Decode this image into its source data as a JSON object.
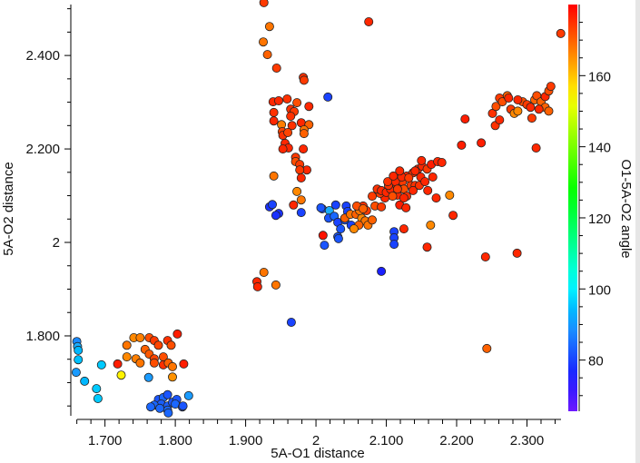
{
  "chart_data": {
    "type": "scatter",
    "title": "",
    "xlabel": "5A-O1 distance",
    "ylabel": "5A-O2 distance",
    "colorbar_label": "O1-5A-O2 angle",
    "xlim": [
      1.654,
      2.351
    ],
    "ylim": [
      1.629,
      2.509
    ],
    "clim": [
      65.6,
      180
    ],
    "x_ticks": [
      {
        "value": 1.7,
        "label": "1.700"
      },
      {
        "value": 1.8,
        "label": "1.800"
      },
      {
        "value": 1.9,
        "label": "1.900"
      },
      {
        "value": 2.0,
        "label": "2"
      },
      {
        "value": 2.1,
        "label": "2.100"
      },
      {
        "value": 2.2,
        "label": "2.200"
      },
      {
        "value": 2.3,
        "label": "2.300"
      }
    ],
    "y_ticks": [
      {
        "value": 1.8,
        "label": "1.800"
      },
      {
        "value": 2.0,
        "label": "2"
      },
      {
        "value": 2.2,
        "label": "2.200"
      },
      {
        "value": 2.4,
        "label": "2.400"
      }
    ],
    "c_ticks": [
      {
        "value": 80,
        "label": "80"
      },
      {
        "value": 100,
        "label": "100"
      },
      {
        "value": 120,
        "label": "120"
      },
      {
        "value": 140,
        "label": "140"
      },
      {
        "value": 160,
        "label": "160"
      }
    ],
    "colormap": "rainbow",
    "points": [
      [
        1.66,
        1.788,
        88
      ],
      [
        1.661,
        1.777,
        92
      ],
      [
        1.662,
        1.769,
        94
      ],
      [
        1.662,
        1.749,
        95
      ],
      [
        1.659,
        1.722,
        90
      ],
      [
        1.671,
        1.703,
        94
      ],
      [
        1.688,
        1.687,
        96
      ],
      [
        1.69,
        1.666,
        96
      ],
      [
        1.695,
        1.738,
        96
      ],
      [
        1.741,
        1.796,
        166
      ],
      [
        1.75,
        1.796,
        167
      ],
      [
        1.731,
        1.78,
        168
      ],
      [
        1.731,
        1.755,
        166
      ],
      [
        1.763,
        1.796,
        172
      ],
      [
        1.77,
        1.79,
        174
      ],
      [
        1.776,
        1.78,
        173
      ],
      [
        1.789,
        1.79,
        175
      ],
      [
        1.794,
        1.78,
        172
      ],
      [
        1.757,
        1.771,
        170
      ],
      [
        1.763,
        1.761,
        171
      ],
      [
        1.77,
        1.751,
        173
      ],
      [
        1.783,
        1.755,
        172
      ],
      [
        1.744,
        1.751,
        167
      ],
      [
        1.75,
        1.742,
        168
      ],
      [
        1.783,
        1.738,
        175
      ],
      [
        1.79,
        1.742,
        170
      ],
      [
        1.796,
        1.734,
        168
      ],
      [
        1.77,
        1.742,
        172
      ],
      [
        1.803,
        1.804,
        177
      ],
      [
        1.812,
        1.74,
        177
      ],
      [
        1.718,
        1.74,
        177
      ],
      [
        1.723,
        1.716,
        155
      ],
      [
        1.796,
        1.712,
        165
      ],
      [
        1.762,
        1.711,
        90
      ],
      [
        1.776,
        1.664,
        82
      ],
      [
        1.783,
        1.668,
        84
      ],
      [
        1.78,
        1.654,
        83
      ],
      [
        1.789,
        1.674,
        82
      ],
      [
        1.77,
        1.652,
        84
      ],
      [
        1.789,
        1.65,
        83
      ],
      [
        1.796,
        1.658,
        82
      ],
      [
        1.789,
        1.641,
        84
      ],
      [
        1.802,
        1.664,
        82
      ],
      [
        1.8,
        1.654,
        84
      ],
      [
        1.81,
        1.648,
        82
      ],
      [
        1.811,
        1.65,
        82
      ],
      [
        1.819,
        1.672,
        90
      ],
      [
        1.79,
        1.635,
        84
      ],
      [
        1.778,
        1.645,
        84
      ],
      [
        1.765,
        1.648,
        84
      ],
      [
        1.926,
        2.513,
        174
      ],
      [
        1.934,
        2.462,
        168
      ],
      [
        1.925,
        2.429,
        168
      ],
      [
        1.931,
        2.402,
        170
      ],
      [
        1.944,
        2.373,
        174
      ],
      [
        1.982,
        2.353,
        175
      ],
      [
        1.983,
        2.347,
        174
      ],
      [
        2.017,
        2.311,
        80
      ],
      [
        1.939,
        2.301,
        176
      ],
      [
        1.947,
        2.303,
        176
      ],
      [
        1.959,
        2.307,
        175
      ],
      [
        1.973,
        2.299,
        172
      ],
      [
        1.99,
        2.291,
        176
      ],
      [
        1.94,
        2.278,
        175
      ],
      [
        1.94,
        2.26,
        176
      ],
      [
        1.964,
        2.285,
        175
      ],
      [
        1.969,
        2.28,
        174
      ],
      [
        1.964,
        2.27,
        175
      ],
      [
        1.951,
        2.252,
        167
      ],
      [
        1.952,
        2.237,
        173
      ],
      [
        1.966,
        2.25,
        175
      ],
      [
        1.979,
        2.256,
        176
      ],
      [
        1.99,
        2.252,
        170
      ],
      [
        1.983,
        2.241,
        168
      ],
      [
        1.953,
        2.229,
        175
      ],
      [
        1.96,
        2.235,
        173
      ],
      [
        1.983,
        2.233,
        170
      ],
      [
        1.956,
        2.212,
        176
      ],
      [
        1.961,
        2.202,
        176
      ],
      [
        1.953,
        2.2,
        176
      ],
      [
        1.982,
        2.2,
        176
      ],
      [
        1.971,
        2.182,
        174
      ],
      [
        1.971,
        2.173,
        172
      ],
      [
        1.977,
        2.167,
        174
      ],
      [
        1.987,
        2.155,
        176
      ],
      [
        1.977,
        2.155,
        174
      ],
      [
        1.979,
        2.138,
        176
      ],
      [
        1.94,
        2.142,
        168
      ],
      [
        1.973,
        2.109,
        166
      ],
      [
        1.979,
        2.091,
        168
      ],
      [
        1.968,
        2.08,
        176
      ],
      [
        1.979,
        2.064,
        80
      ],
      [
        1.934,
        2.076,
        78
      ],
      [
        1.938,
        2.081,
        80
      ],
      [
        1.947,
        2.062,
        78
      ],
      [
        1.943,
        2.058,
        78
      ],
      [
        2.009,
        2.072,
        82
      ],
      [
        1.916,
        1.916,
        176
      ],
      [
        1.917,
        1.905,
        176
      ],
      [
        1.926,
        1.936,
        168
      ],
      [
        1.943,
        1.909,
        168
      ],
      [
        1.965,
        1.829,
        80
      ],
      [
        2.093,
        1.938,
        76
      ],
      [
        2.075,
        2.472,
        176
      ],
      [
        2.348,
        2.447,
        174
      ],
      [
        2.243,
        1.773,
        170
      ],
      [
        2.286,
        1.977,
        176
      ],
      [
        2.241,
        1.969,
        176
      ],
      [
        2.007,
        2.074,
        82
      ],
      [
        2.019,
        2.068,
        92
      ],
      [
        2.018,
        2.052,
        82
      ],
      [
        2.028,
        2.08,
        80
      ],
      [
        2.043,
        2.078,
        80
      ],
      [
        2.045,
        2.066,
        80
      ],
      [
        2.026,
        2.056,
        84
      ],
      [
        2.031,
        2.043,
        80
      ],
      [
        2.041,
        2.048,
        82
      ],
      [
        2.05,
        2.037,
        80
      ],
      [
        2.035,
        2.029,
        82
      ],
      [
        2.031,
        2.012,
        82
      ],
      [
        2.01,
        2.015,
        178
      ],
      [
        2.012,
        1.994,
        82
      ],
      [
        2.032,
        2.008,
        82
      ],
      [
        2.111,
        2.023,
        80
      ],
      [
        2.111,
        2.01,
        80
      ],
      [
        2.111,
        1.996,
        80
      ],
      [
        2.041,
        2.052,
        170
      ],
      [
        2.049,
        2.06,
        168
      ],
      [
        2.057,
        2.06,
        170
      ],
      [
        2.065,
        2.052,
        166
      ],
      [
        2.07,
        2.046,
        168
      ],
      [
        2.061,
        2.037,
        170
      ],
      [
        2.054,
        2.029,
        166
      ],
      [
        2.074,
        2.037,
        168
      ],
      [
        2.08,
        2.048,
        170
      ],
      [
        2.067,
        2.078,
        175
      ],
      [
        2.072,
        2.068,
        174
      ],
      [
        2.084,
        2.078,
        172
      ],
      [
        2.093,
        2.076,
        174
      ],
      [
        2.098,
        2.095,
        176
      ],
      [
        2.091,
        2.105,
        174
      ],
      [
        2.08,
        2.099,
        174
      ],
      [
        2.062,
        2.068,
        168
      ],
      [
        2.058,
        2.078,
        172
      ],
      [
        2.067,
        2.072,
        170
      ],
      [
        2.087,
        2.114,
        175
      ],
      [
        2.093,
        2.111,
        176
      ],
      [
        2.1,
        2.107,
        176
      ],
      [
        2.106,
        2.114,
        176
      ],
      [
        2.115,
        2.122,
        175
      ],
      [
        2.123,
        2.13,
        174
      ],
      [
        2.129,
        2.142,
        176
      ],
      [
        2.138,
        2.149,
        175
      ],
      [
        2.145,
        2.157,
        176
      ],
      [
        2.151,
        2.163,
        176
      ],
      [
        2.158,
        2.157,
        174
      ],
      [
        2.164,
        2.167,
        177
      ],
      [
        2.173,
        2.173,
        176
      ],
      [
        2.179,
        2.171,
        176
      ],
      [
        2.135,
        2.122,
        174
      ],
      [
        2.125,
        2.114,
        172
      ],
      [
        2.116,
        2.101,
        176
      ],
      [
        2.109,
        2.099,
        172
      ],
      [
        2.103,
        2.122,
        175
      ],
      [
        2.113,
        2.13,
        176
      ],
      [
        2.122,
        2.14,
        176
      ],
      [
        2.132,
        2.138,
        174
      ],
      [
        2.141,
        2.122,
        175
      ],
      [
        2.149,
        2.14,
        176
      ],
      [
        2.119,
        2.08,
        177
      ],
      [
        2.129,
        2.099,
        175
      ],
      [
        2.138,
        2.111,
        176
      ],
      [
        2.147,
        2.122,
        175
      ],
      [
        2.155,
        2.13,
        176
      ],
      [
        2.166,
        2.14,
        176
      ],
      [
        2.159,
        2.111,
        176
      ],
      [
        2.171,
        2.095,
        176
      ],
      [
        2.102,
        2.13,
        175
      ],
      [
        2.11,
        2.142,
        176
      ],
      [
        2.119,
        2.153,
        176
      ],
      [
        2.141,
        2.153,
        176
      ],
      [
        2.15,
        2.175,
        176
      ],
      [
        2.116,
        2.114,
        174
      ],
      [
        2.125,
        2.095,
        176
      ],
      [
        2.19,
        2.101,
        166
      ],
      [
        2.195,
        2.058,
        176
      ],
      [
        2.163,
        2.037,
        166
      ],
      [
        2.125,
        2.029,
        176
      ],
      [
        2.158,
        1.99,
        176
      ],
      [
        2.128,
        2.074,
        176
      ],
      [
        2.207,
        2.208,
        177
      ],
      [
        2.235,
        2.213,
        177
      ],
      [
        2.212,
        2.264,
        177
      ],
      [
        2.251,
        2.276,
        175
      ],
      [
        2.256,
        2.291,
        172
      ],
      [
        2.261,
        2.309,
        174
      ],
      [
        2.265,
        2.301,
        172
      ],
      [
        2.272,
        2.314,
        170
      ],
      [
        2.277,
        2.285,
        174
      ],
      [
        2.282,
        2.276,
        166
      ],
      [
        2.287,
        2.281,
        166
      ],
      [
        2.294,
        2.301,
        172
      ],
      [
        2.3,
        2.295,
        174
      ],
      [
        2.305,
        2.289,
        176
      ],
      [
        2.311,
        2.305,
        170
      ],
      [
        2.314,
        2.314,
        172
      ],
      [
        2.32,
        2.301,
        170
      ],
      [
        2.326,
        2.312,
        176
      ],
      [
        2.331,
        2.324,
        172
      ],
      [
        2.334,
        2.334,
        174
      ],
      [
        2.326,
        2.289,
        170
      ],
      [
        2.331,
        2.281,
        170
      ],
      [
        2.317,
        2.285,
        176
      ],
      [
        2.307,
        2.266,
        174
      ],
      [
        2.274,
        2.309,
        176
      ],
      [
        2.287,
        2.305,
        176
      ],
      [
        2.255,
        2.25,
        175
      ],
      [
        2.261,
        2.262,
        176
      ],
      [
        2.313,
        2.202,
        176
      ]
    ]
  }
}
